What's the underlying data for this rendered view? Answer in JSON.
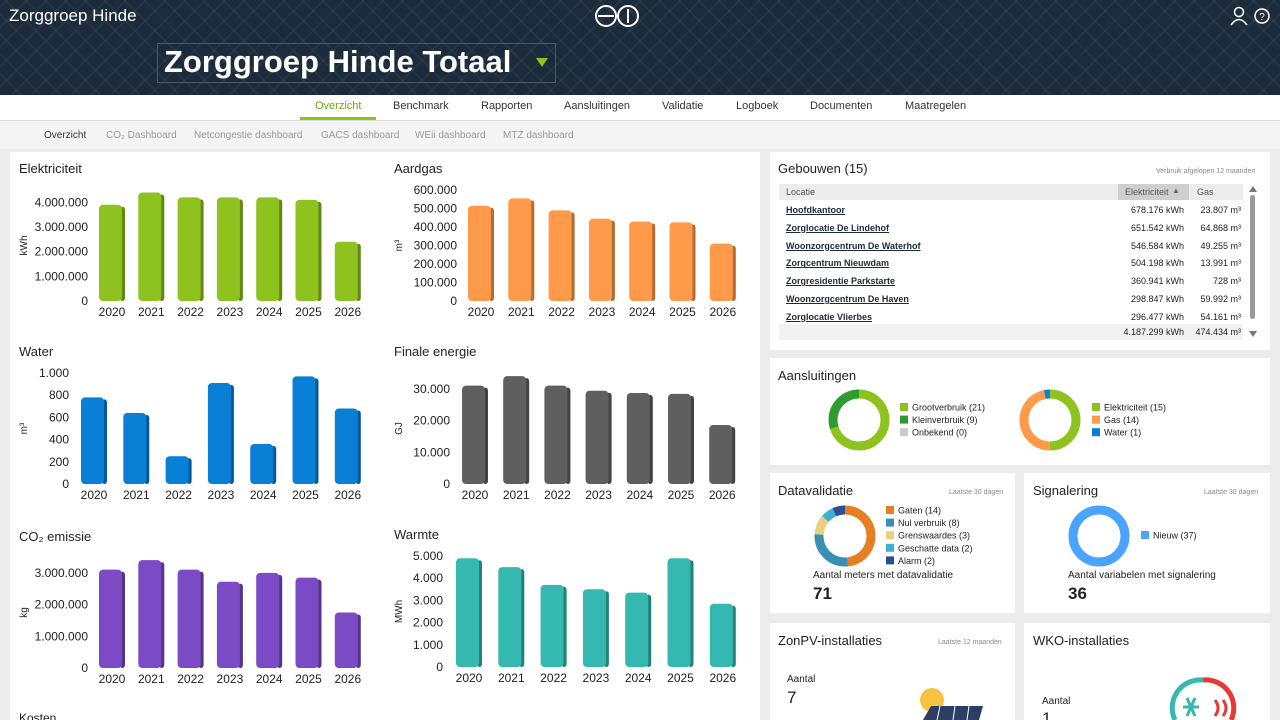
{
  "header": {
    "brand": "Zorggroep Hinde",
    "title": "Zorggroep Hinde Totaal"
  },
  "nav": {
    "tabs": [
      "Overzicht",
      "Benchmark",
      "Rapporten",
      "Aansluitingen",
      "Validatie",
      "Logboek",
      "Documenten",
      "Maatregelen"
    ],
    "subtabs": [
      "Overzicht",
      "CO₂ Dashboard",
      "Netcongestie dashboard",
      "GACS dashboard",
      "WEii dashboard",
      "MTZ dashboard"
    ]
  },
  "chart_data": [
    {
      "type": "bar",
      "title": "Elektriciteit",
      "y_label": "kWh",
      "color": "#8dc21f",
      "categories": [
        "2020",
        "2021",
        "2022",
        "2023",
        "2024",
        "2025",
        "2026"
      ],
      "values": [
        3900000,
        4400000,
        4200000,
        4200000,
        4200000,
        4100000,
        2400000
      ],
      "ylim": [
        0,
        4500000
      ],
      "yticks": [
        0,
        {
          "value": 1000000,
          "label": "1.000.000"
        },
        {
          "value": 2000000,
          "label": "2.000.000"
        },
        {
          "value": 3000000,
          "label": "3.000.000"
        },
        {
          "value": 4000000,
          "label": "4.000.000"
        }
      ]
    },
    {
      "type": "bar",
      "title": "Aardgas",
      "y_label": "m³",
      "color": "#ff9a4a",
      "categories": [
        "2020",
        "2021",
        "2022",
        "2023",
        "2024",
        "2025",
        "2026"
      ],
      "values": [
        515000,
        555000,
        490000,
        445000,
        430000,
        425000,
        310000
      ],
      "ylim": [
        0,
        600000
      ],
      "yticks": [
        0,
        {
          "value": 100000,
          "label": "100.000"
        },
        {
          "value": 200000,
          "label": "200.000"
        },
        {
          "value": 300000,
          "label": "300.000"
        },
        {
          "value": 400000,
          "label": "400.000"
        },
        {
          "value": 500000,
          "label": "500.000"
        },
        {
          "value": 600000,
          "label": "600.000"
        }
      ]
    },
    {
      "type": "bar",
      "title": "Water",
      "y_label": "m³",
      "color": "#0a7fd6",
      "categories": [
        "2020",
        "2021",
        "2022",
        "2023",
        "2024",
        "2025",
        "2026"
      ],
      "values": [
        780,
        640,
        250,
        910,
        360,
        970,
        680
      ],
      "ylim": [
        0,
        1000
      ],
      "yticks": [
        0,
        200,
        400,
        600,
        800,
        {
          "value": 1000,
          "label": "1.000"
        }
      ]
    },
    {
      "type": "bar",
      "title": "Finale energie",
      "y_label": "GJ",
      "color": "#5f5f5f",
      "categories": [
        "2020",
        "2021",
        "2022",
        "2023",
        "2024",
        "2025",
        "2026"
      ],
      "values": [
        31000,
        34000,
        31000,
        29400,
        28700,
        28400,
        18600
      ],
      "ylim": [
        0,
        35000
      ],
      "yticks": [
        0,
        {
          "value": 10000,
          "label": "10.000"
        },
        {
          "value": 20000,
          "label": "20.000"
        },
        {
          "value": 30000,
          "label": "30.000"
        }
      ]
    },
    {
      "type": "bar",
      "title": "CO₂ emissie",
      "y_label": "kg",
      "color": "#7a4bc4",
      "categories": [
        "2020",
        "2021",
        "2022",
        "2023",
        "2024",
        "2025",
        "2026"
      ],
      "values": [
        3100000,
        3400000,
        3100000,
        2720000,
        3000000,
        2850000,
        1750000
      ],
      "ylim": [
        0,
        3500000
      ],
      "yticks": [
        0,
        {
          "value": 1000000,
          "label": "1.000.000"
        },
        {
          "value": 2000000,
          "label": "2.000.000"
        },
        {
          "value": 3000000,
          "label": "3.000.000"
        }
      ]
    },
    {
      "type": "bar",
      "title": "Warmte",
      "y_label": "MWh",
      "color": "#35b8b0",
      "categories": [
        "2020",
        "2021",
        "2022",
        "2023",
        "2024",
        "2025",
        "2026"
      ],
      "values": [
        4900,
        4500,
        3700,
        3500,
        3350,
        4900,
        2850
      ],
      "ylim": [
        0,
        5000
      ],
      "yticks": [
        0,
        {
          "value": 1000,
          "label": "1.000"
        },
        {
          "value": 2000,
          "label": "2.000"
        },
        {
          "value": 3000,
          "label": "3.000"
        },
        {
          "value": 4000,
          "label": "4.000"
        },
        {
          "value": 5000,
          "label": "5.000"
        }
      ]
    },
    {
      "type": "donut",
      "labels": [
        "Grootverbruik (21)",
        "Kleinverbruik (9)",
        "Onbekend (0)"
      ],
      "values": [
        21,
        9,
        0
      ],
      "colors": [
        "#8dc21f",
        "#2e9b2e",
        "#cccccc"
      ]
    },
    {
      "type": "donut",
      "labels": [
        "Elektriciteit (15)",
        "Gas (14)",
        "Water (1)"
      ],
      "values": [
        15,
        14,
        1
      ],
      "colors": [
        "#8dc21f",
        "#ff9a4a",
        "#0a7fd6"
      ]
    },
    {
      "type": "donut",
      "labels": [
        "Gaten (14)",
        "Nul verbruik (8)",
        "Grenswaardes (3)",
        "Geschatte data (2)",
        "Alarm (2)"
      ],
      "values": [
        14,
        8,
        3,
        2,
        2
      ],
      "colors": [
        "#e67e22",
        "#3a8fb7",
        "#e8d080",
        "#3bb3d0",
        "#2c4f8f"
      ]
    },
    {
      "type": "donut",
      "labels": [
        "Nieuw (37)"
      ],
      "values": [
        37
      ],
      "colors": [
        "#4aa3ff"
      ]
    }
  ],
  "buildings": {
    "title": "Gebouwen (15)",
    "note": "Verbruik afgelopen 12 maanden",
    "columns": [
      "Locatie",
      "Elektriciteit",
      "Gas"
    ],
    "rows": [
      [
        "Hoofdkantoor",
        "678.176 kWh",
        "23.807 m³"
      ],
      [
        "Zorglocatie De Lindehof",
        "651.542 kWh",
        "64.868 m³"
      ],
      [
        "Woonzorgcentrum De Waterhof",
        "546.584 kWh",
        "49.255 m³"
      ],
      [
        "Zorgcentrum Nieuwdam",
        "504.198 kWh",
        "13.991 m³"
      ],
      [
        "Zorgresidentie Parkstarte",
        "360.941 kWh",
        "728 m³"
      ],
      [
        "Woonzorgcentrum De Haven",
        "298.847 kWh",
        "59.992 m³"
      ],
      [
        "Zorglocatie Vlierbes",
        "296.477 kWh",
        "54.161 m³"
      ]
    ],
    "total": [
      "4.187.299 kWh",
      "474.434 m³"
    ]
  },
  "cards": {
    "aansluitingen": {
      "title": "Aansluitingen"
    },
    "datavalidatie": {
      "title": "Datavalidatie",
      "note": "Laatste 30 dagen",
      "caption": "Aantal meters met datavalidatie",
      "count": 71
    },
    "signalering": {
      "title": "Signalering",
      "note": "Laatste 30 dagen",
      "caption": "Aantal variabelen met signalering",
      "count": 36
    },
    "zonpv": {
      "title": "ZonPV-installaties",
      "note": "Laatste 12 maanden",
      "label": "Aantal",
      "count": 7
    },
    "wko": {
      "title": "WKO-installaties",
      "label": "Aantal",
      "count": 1
    },
    "kosten": {
      "title": "Kosten"
    }
  }
}
